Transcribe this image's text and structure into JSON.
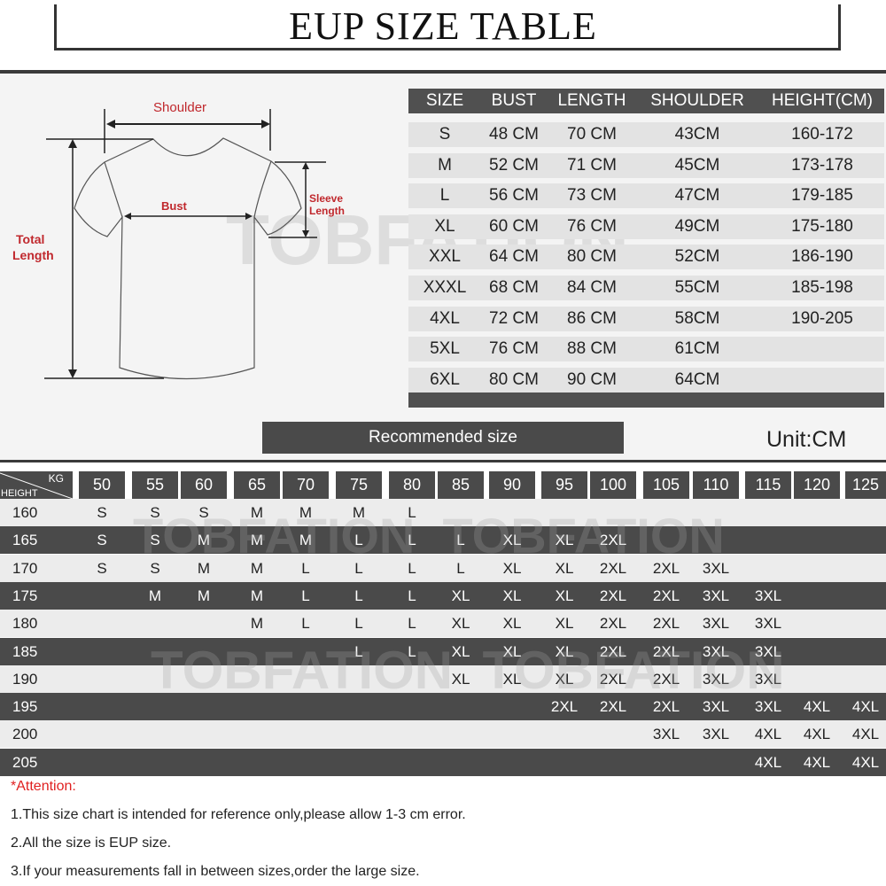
{
  "title": "EUP  SIZE TABLE",
  "watermark": "TOBFATION",
  "diagram": {
    "shoulder": "Shoulder",
    "bust": "Bust",
    "sleeve_1": "Sleeve",
    "sleeve_2": "Length",
    "total_1": "Total",
    "total_2": "Length",
    "label_color": "#c0282d"
  },
  "size_table": {
    "headers": [
      "SIZE",
      "BUST",
      "LENGTH",
      "SHOULDER",
      "HEIGHT(CM)"
    ],
    "rows": [
      [
        "S",
        "48 CM",
        "70 CM",
        "43CM",
        "160-172"
      ],
      [
        "M",
        "52 CM",
        "71 CM",
        "45CM",
        "173-178"
      ],
      [
        "L",
        "56 CM",
        "73 CM",
        "47CM",
        "179-185"
      ],
      [
        "XL",
        "60 CM",
        "76 CM",
        "49CM",
        "175-180"
      ],
      [
        "XXL",
        "64 CM",
        "80 CM",
        "52CM",
        "186-190"
      ],
      [
        "XXXL",
        "68 CM",
        "84 CM",
        "55CM",
        "185-198"
      ],
      [
        "4XL",
        "72 CM",
        "86 CM",
        "58CM",
        "190-205"
      ],
      [
        "5XL",
        "76 CM",
        "88 CM",
        "61CM",
        ""
      ],
      [
        "6XL",
        "80 CM",
        "90 CM",
        "64CM",
        ""
      ]
    ]
  },
  "recommended_label": "Recommended size",
  "unit": "Unit:CM",
  "grid": {
    "kg_label": "KG",
    "height_label": "HEIGHT",
    "weights": [
      "50",
      "55",
      "60",
      "65",
      "70",
      "75",
      "80",
      "85",
      "90",
      "95",
      "100",
      "105",
      "110",
      "115",
      "120",
      "125"
    ],
    "rows": [
      {
        "height": "160",
        "sizes": [
          "S",
          "S",
          "S",
          "M",
          "M",
          "M",
          "L",
          "",
          "",
          "",
          "",
          "",
          "",
          "",
          "",
          ""
        ]
      },
      {
        "height": "165",
        "sizes": [
          "S",
          "S",
          "M",
          "M",
          "M",
          "L",
          "L",
          "L",
          "XL",
          "XL",
          "2XL",
          "",
          "",
          "",
          "",
          ""
        ]
      },
      {
        "height": "170",
        "sizes": [
          "S",
          "S",
          "M",
          "M",
          "L",
          "L",
          "L",
          "L",
          "XL",
          "XL",
          "2XL",
          "2XL",
          "3XL",
          "",
          "",
          ""
        ]
      },
      {
        "height": "175",
        "sizes": [
          "",
          "M",
          "M",
          "M",
          "L",
          "L",
          "L",
          "XL",
          "XL",
          "XL",
          "2XL",
          "2XL",
          "3XL",
          "3XL",
          "",
          ""
        ]
      },
      {
        "height": "180",
        "sizes": [
          "",
          "",
          "",
          "M",
          "L",
          "L",
          "L",
          "XL",
          "XL",
          "XL",
          "2XL",
          "2XL",
          "3XL",
          "3XL",
          "",
          ""
        ]
      },
      {
        "height": "185",
        "sizes": [
          "",
          "",
          "",
          "",
          "",
          "L",
          "L",
          "XL",
          "XL",
          "XL",
          "2XL",
          "2XL",
          "3XL",
          "3XL",
          "",
          ""
        ]
      },
      {
        "height": "190",
        "sizes": [
          "",
          "",
          "",
          "",
          "",
          "",
          "",
          "XL",
          "XL",
          "XL",
          "2XL",
          "2XL",
          "3XL",
          "3XL",
          "",
          ""
        ]
      },
      {
        "height": "195",
        "sizes": [
          "",
          "",
          "",
          "",
          "",
          "",
          "",
          "",
          "",
          "2XL",
          "2XL",
          "2XL",
          "3XL",
          "3XL",
          "4XL",
          "4XL"
        ]
      },
      {
        "height": "200",
        "sizes": [
          "",
          "",
          "",
          "",
          "",
          "",
          "",
          "",
          "",
          "",
          "",
          "3XL",
          "3XL",
          "4XL",
          "4XL",
          "4XL"
        ]
      },
      {
        "height": "205",
        "sizes": [
          "",
          "",
          "",
          "",
          "",
          "",
          "",
          "",
          "",
          "",
          "",
          "",
          "",
          "4XL",
          "4XL",
          "4XL"
        ]
      }
    ]
  },
  "attention": "*Attention:",
  "notes": [
    "1.This size chart is intended for reference only,please allow 1-3 cm error.",
    "2.All the size is EUP size.",
    "3.If your measurements fall in between sizes,order the large size."
  ]
}
